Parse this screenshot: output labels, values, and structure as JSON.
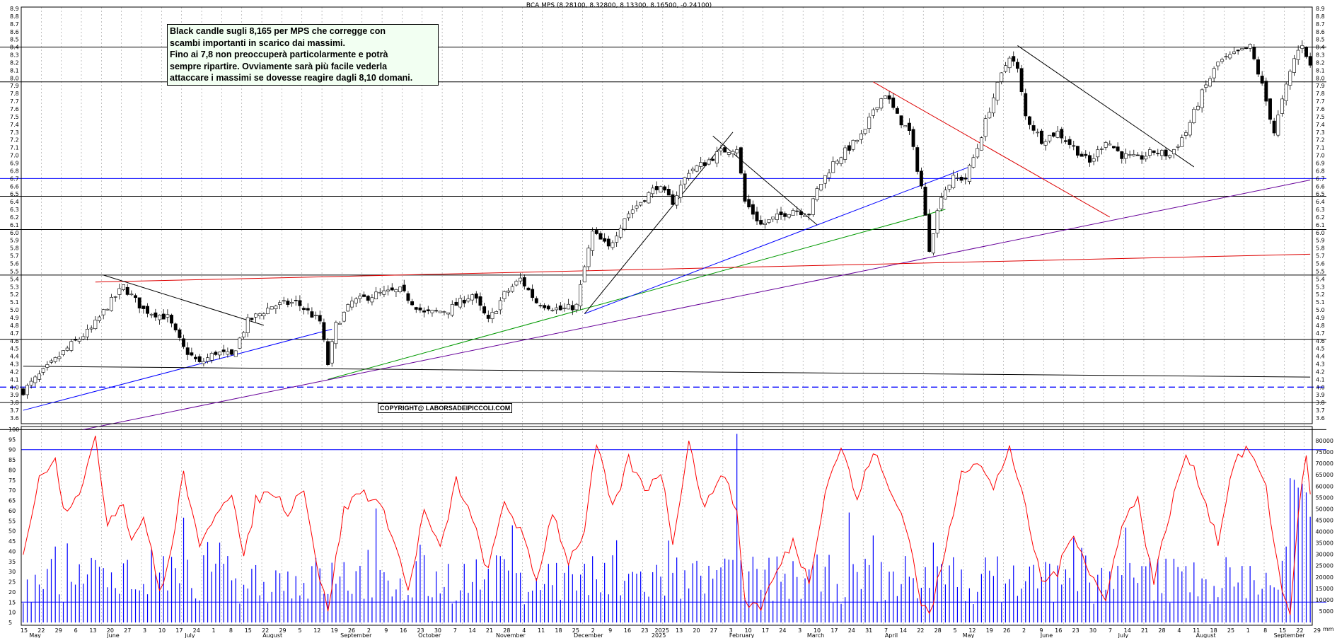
{
  "chart_data": [
    {
      "type": "candlestick",
      "title": "BCA MPS (8.28100, 8.32800, 8.13300, 8.16500, -0.24100)",
      "ylim": [
        3.6,
        8.9
      ],
      "y_ticks": [
        "3.6",
        "3.7",
        "3.8",
        "3.9",
        "4.0",
        "4.1",
        "4.2",
        "4.3",
        "4.4",
        "4.5",
        "4.6",
        "4.7",
        "4.8",
        "4.9",
        "5.0",
        "5.1",
        "5.2",
        "5.3",
        "5.4",
        "5.5",
        "5.6",
        "5.7",
        "5.8",
        "5.9",
        "6.0",
        "6.1",
        "6.2",
        "6.3",
        "6.4",
        "6.5",
        "6.6",
        "6.7",
        "6.8",
        "6.9",
        "7.0",
        "7.1",
        "7.2",
        "7.3",
        "7.4",
        "7.5",
        "7.6",
        "7.7",
        "7.8",
        "7.9",
        "8.0",
        "8.1",
        "8.2",
        "8.3",
        "8.4",
        "8.5",
        "8.6",
        "8.7",
        "8.8",
        "8.9"
      ],
      "last": {
        "open": 8.281,
        "high": 8.328,
        "low": 8.133,
        "close": 8.165,
        "change": -0.241
      },
      "close_path": [
        {
          "i": 0,
          "v": 3.95
        },
        {
          "i": 5,
          "v": 4.2
        },
        {
          "i": 12,
          "v": 4.55
        },
        {
          "i": 17,
          "v": 4.75
        },
        {
          "i": 21,
          "v": 5.05
        },
        {
          "i": 25,
          "v": 5.3
        },
        {
          "i": 30,
          "v": 5.0
        },
        {
          "i": 36,
          "v": 4.9
        },
        {
          "i": 40,
          "v": 4.5
        },
        {
          "i": 44,
          "v": 4.3
        },
        {
          "i": 48,
          "v": 4.45
        },
        {
          "i": 52,
          "v": 4.4
        },
        {
          "i": 56,
          "v": 4.85
        },
        {
          "i": 62,
          "v": 5.05
        },
        {
          "i": 68,
          "v": 5.1
        },
        {
          "i": 74,
          "v": 4.85
        },
        {
          "i": 76,
          "v": 4.3
        },
        {
          "i": 78,
          "v": 4.8
        },
        {
          "i": 82,
          "v": 5.1
        },
        {
          "i": 88,
          "v": 5.2
        },
        {
          "i": 94,
          "v": 5.25
        },
        {
          "i": 100,
          "v": 4.95
        },
        {
          "i": 106,
          "v": 5.0
        },
        {
          "i": 112,
          "v": 5.2
        },
        {
          "i": 116,
          "v": 4.85
        },
        {
          "i": 120,
          "v": 5.2
        },
        {
          "i": 124,
          "v": 5.4
        },
        {
          "i": 128,
          "v": 5.1
        },
        {
          "i": 134,
          "v": 5.0
        },
        {
          "i": 138,
          "v": 5.05
        },
        {
          "i": 140,
          "v": 5.55
        },
        {
          "i": 142,
          "v": 6.0
        },
        {
          "i": 146,
          "v": 5.8
        },
        {
          "i": 150,
          "v": 6.2
        },
        {
          "i": 154,
          "v": 6.4
        },
        {
          "i": 158,
          "v": 6.6
        },
        {
          "i": 162,
          "v": 6.4
        },
        {
          "i": 166,
          "v": 6.8
        },
        {
          "i": 170,
          "v": 6.9
        },
        {
          "i": 174,
          "v": 7.05
        },
        {
          "i": 178,
          "v": 7.1
        },
        {
          "i": 180,
          "v": 6.4
        },
        {
          "i": 184,
          "v": 6.1
        },
        {
          "i": 188,
          "v": 6.2
        },
        {
          "i": 192,
          "v": 6.3
        },
        {
          "i": 196,
          "v": 6.25
        },
        {
          "i": 198,
          "v": 6.55
        },
        {
          "i": 202,
          "v": 6.9
        },
        {
          "i": 206,
          "v": 7.1
        },
        {
          "i": 210,
          "v": 7.3
        },
        {
          "i": 212,
          "v": 7.6
        },
        {
          "i": 215,
          "v": 7.8
        },
        {
          "i": 218,
          "v": 7.5
        },
        {
          "i": 221,
          "v": 7.3
        },
        {
          "i": 224,
          "v": 6.6
        },
        {
          "i": 226,
          "v": 5.8
        },
        {
          "i": 229,
          "v": 6.5
        },
        {
          "i": 232,
          "v": 6.7
        },
        {
          "i": 235,
          "v": 6.7
        },
        {
          "i": 238,
          "v": 7.1
        },
        {
          "i": 241,
          "v": 7.6
        },
        {
          "i": 243,
          "v": 7.9
        },
        {
          "i": 246,
          "v": 8.3
        },
        {
          "i": 248,
          "v": 8.1
        },
        {
          "i": 250,
          "v": 7.5
        },
        {
          "i": 254,
          "v": 7.2
        },
        {
          "i": 258,
          "v": 7.3
        },
        {
          "i": 262,
          "v": 7.1
        },
        {
          "i": 266,
          "v": 6.9
        },
        {
          "i": 270,
          "v": 7.2
        },
        {
          "i": 274,
          "v": 7.0
        },
        {
          "i": 278,
          "v": 6.95
        },
        {
          "i": 282,
          "v": 7.05
        },
        {
          "i": 286,
          "v": 7.0
        },
        {
          "i": 290,
          "v": 7.3
        },
        {
          "i": 294,
          "v": 7.8
        },
        {
          "i": 298,
          "v": 8.2
        },
        {
          "i": 302,
          "v": 8.3
        },
        {
          "i": 306,
          "v": 8.4
        },
        {
          "i": 309,
          "v": 7.9
        },
        {
          "i": 312,
          "v": 7.3
        },
        {
          "i": 314,
          "v": 7.7
        },
        {
          "i": 317,
          "v": 8.25
        },
        {
          "i": 319,
          "v": 8.45
        },
        {
          "i": 321,
          "v": 8.165
        }
      ],
      "horizontal_levels": [
        {
          "value": 8.4,
          "color": "#000000"
        },
        {
          "value": 7.95,
          "color": "#000000"
        },
        {
          "value": 6.7,
          "color": "#0000ff"
        },
        {
          "value": 6.47,
          "color": "#000000"
        },
        {
          "value": 6.04,
          "color": "#000000"
        },
        {
          "value": 5.45,
          "color": "#000000"
        },
        {
          "value": 4.62,
          "color": "#000000"
        },
        {
          "value": 4.0,
          "color": "#0000ff",
          "dashed": true
        },
        {
          "value": 3.8,
          "color": "#000000"
        },
        {
          "value": 3.45,
          "color": "#000000"
        }
      ],
      "trend_lines": [
        {
          "from": [
            0,
            3.7
          ],
          "to": [
            77,
            4.75
          ],
          "color": "#0000ff"
        },
        {
          "from": [
            76,
            4.1
          ],
          "to": [
            230,
            6.3
          ],
          "color": "#009900"
        },
        {
          "from": [
            15,
            3.45
          ],
          "to": [
            321,
            6.68
          ],
          "color": "#660099"
        },
        {
          "from": [
            18,
            5.36
          ],
          "to": [
            321,
            5.72
          ],
          "color": "#dd0000"
        },
        {
          "from": [
            140,
            4.95
          ],
          "to": [
            236,
            6.85
          ],
          "color": "#0000ff"
        },
        {
          "from": [
            140,
            4.95
          ],
          "to": [
            177,
            7.3
          ],
          "color": "#000000"
        },
        {
          "from": [
            212,
            7.95
          ],
          "to": [
            271,
            6.2
          ],
          "color": "#dd0000"
        },
        {
          "from": [
            248,
            8.42
          ],
          "to": [
            292,
            6.85
          ],
          "color": "#000000"
        },
        {
          "from": [
            0,
            4.27
          ],
          "to": [
            321,
            4.13
          ],
          "color": "#000000"
        },
        {
          "from": [
            20,
            5.45
          ],
          "to": [
            60,
            4.8
          ],
          "color": "#000000"
        },
        {
          "from": [
            172,
            7.25
          ],
          "to": [
            198,
            6.1
          ],
          "color": "#000000"
        }
      ],
      "date_ticks": [
        "15",
        "22",
        "29",
        "6",
        "13",
        "20",
        "27",
        "3",
        "10",
        "17",
        "24",
        "1",
        "8",
        "15",
        "22",
        "29",
        "5",
        "12",
        "19",
        "26",
        "2",
        "9",
        "16",
        "23",
        "30",
        "7",
        "14",
        "21",
        "28",
        "4",
        "11",
        "18",
        "25",
        "2",
        "9",
        "16",
        "23",
        "2025",
        "13",
        "20",
        "27",
        "3",
        "10",
        "17",
        "24",
        "3",
        "10",
        "17",
        "24",
        "31",
        "7",
        "14",
        "22",
        "28",
        "5",
        "12",
        "19",
        "26",
        "2",
        "9",
        "16",
        "23",
        "30",
        "7",
        "14",
        "21",
        "28",
        "4",
        "11",
        "18",
        "25",
        "1",
        "8",
        "15",
        "22",
        "29"
      ],
      "month_labels": [
        "May",
        "June",
        "July",
        "August",
        "September",
        "October",
        "November",
        "December",
        "2025",
        "February",
        "March",
        "April",
        "May",
        "June",
        "July",
        "August",
        "September"
      ],
      "annotation": [
        "Black candle sugli 8,165 per MPS che corregge con",
        "scambi importanti in scarico dai massimi.",
        "Fino ai 7,8 non preoccuperà particolarmente e potrà",
        "sempre ripartire. Ovviamente sarà più facile vederla",
        "attaccare i massimi se dovesse reagire dagli 8,10 domani."
      ],
      "copyright": "COPYRIGHT@ LABORSADEIPICCOLI.COM"
    },
    {
      "type": "line+bar",
      "oscillator_ylim": [
        5,
        100
      ],
      "oscillator_ticks": [
        "5",
        "10",
        "15",
        "20",
        "25",
        "30",
        "35",
        "40",
        "45",
        "50",
        "55",
        "60",
        "65",
        "70",
        "75",
        "80",
        "85",
        "90",
        "95",
        "100"
      ],
      "oscillator_levels": [
        90,
        15
      ],
      "volume_ylim": [
        0,
        85000
      ],
      "volume_ticks": [
        "5000",
        "10000",
        "15000",
        "20000",
        "25000",
        "30000",
        "35000",
        "40000",
        "45000",
        "50000",
        "55000",
        "60000",
        "65000",
        "70000",
        "75000",
        "80000"
      ],
      "volume_unit": "mm",
      "oscillator_path": [
        {
          "i": 0,
          "v": 40
        },
        {
          "i": 4,
          "v": 75
        },
        {
          "i": 8,
          "v": 88
        },
        {
          "i": 10,
          "v": 60
        },
        {
          "i": 14,
          "v": 70
        },
        {
          "i": 18,
          "v": 94
        },
        {
          "i": 21,
          "v": 55
        },
        {
          "i": 25,
          "v": 65
        },
        {
          "i": 27,
          "v": 45
        },
        {
          "i": 30,
          "v": 58
        },
        {
          "i": 34,
          "v": 20
        },
        {
          "i": 37,
          "v": 40
        },
        {
          "i": 40,
          "v": 80
        },
        {
          "i": 44,
          "v": 40
        },
        {
          "i": 48,
          "v": 60
        },
        {
          "i": 52,
          "v": 70
        },
        {
          "i": 55,
          "v": 35
        },
        {
          "i": 58,
          "v": 65
        },
        {
          "i": 62,
          "v": 70
        },
        {
          "i": 66,
          "v": 60
        },
        {
          "i": 70,
          "v": 72
        },
        {
          "i": 74,
          "v": 25
        },
        {
          "i": 76,
          "v": 12
        },
        {
          "i": 80,
          "v": 60
        },
        {
          "i": 84,
          "v": 70
        },
        {
          "i": 88,
          "v": 65
        },
        {
          "i": 92,
          "v": 50
        },
        {
          "i": 96,
          "v": 20
        },
        {
          "i": 100,
          "v": 60
        },
        {
          "i": 104,
          "v": 40
        },
        {
          "i": 108,
          "v": 75
        },
        {
          "i": 112,
          "v": 55
        },
        {
          "i": 116,
          "v": 30
        },
        {
          "i": 120,
          "v": 65
        },
        {
          "i": 124,
          "v": 50
        },
        {
          "i": 128,
          "v": 25
        },
        {
          "i": 132,
          "v": 60
        },
        {
          "i": 136,
          "v": 35
        },
        {
          "i": 140,
          "v": 50
        },
        {
          "i": 143,
          "v": 93
        },
        {
          "i": 147,
          "v": 60
        },
        {
          "i": 151,
          "v": 85
        },
        {
          "i": 155,
          "v": 70
        },
        {
          "i": 159,
          "v": 80
        },
        {
          "i": 162,
          "v": 45
        },
        {
          "i": 166,
          "v": 94
        },
        {
          "i": 170,
          "v": 60
        },
        {
          "i": 174,
          "v": 80
        },
        {
          "i": 178,
          "v": 60
        },
        {
          "i": 180,
          "v": 15
        },
        {
          "i": 184,
          "v": 13
        },
        {
          "i": 188,
          "v": 30
        },
        {
          "i": 192,
          "v": 45
        },
        {
          "i": 196,
          "v": 25
        },
        {
          "i": 200,
          "v": 70
        },
        {
          "i": 204,
          "v": 92
        },
        {
          "i": 208,
          "v": 65
        },
        {
          "i": 212,
          "v": 90
        },
        {
          "i": 216,
          "v": 70
        },
        {
          "i": 220,
          "v": 55
        },
        {
          "i": 224,
          "v": 15
        },
        {
          "i": 226,
          "v": 8
        },
        {
          "i": 230,
          "v": 40
        },
        {
          "i": 234,
          "v": 80
        },
        {
          "i": 238,
          "v": 85
        },
        {
          "i": 242,
          "v": 70
        },
        {
          "i": 246,
          "v": 92
        },
        {
          "i": 250,
          "v": 60
        },
        {
          "i": 254,
          "v": 25
        },
        {
          "i": 258,
          "v": 30
        },
        {
          "i": 262,
          "v": 50
        },
        {
          "i": 266,
          "v": 30
        },
        {
          "i": 270,
          "v": 15
        },
        {
          "i": 274,
          "v": 55
        },
        {
          "i": 278,
          "v": 65
        },
        {
          "i": 282,
          "v": 25
        },
        {
          "i": 286,
          "v": 60
        },
        {
          "i": 290,
          "v": 88
        },
        {
          "i": 294,
          "v": 70
        },
        {
          "i": 298,
          "v": 45
        },
        {
          "i": 302,
          "v": 85
        },
        {
          "i": 306,
          "v": 90
        },
        {
          "i": 310,
          "v": 70
        },
        {
          "i": 314,
          "v": 20
        },
        {
          "i": 316,
          "v": 10
        },
        {
          "i": 318,
          "v": 60
        },
        {
          "i": 320,
          "v": 85
        },
        {
          "i": 321,
          "v": 70
        }
      ]
    }
  ],
  "colors": {
    "up": "#ffffff",
    "down": "#000000",
    "volume": "#0000ff",
    "oscillator": "#ff0000",
    "grid": "#9a9a9a"
  }
}
